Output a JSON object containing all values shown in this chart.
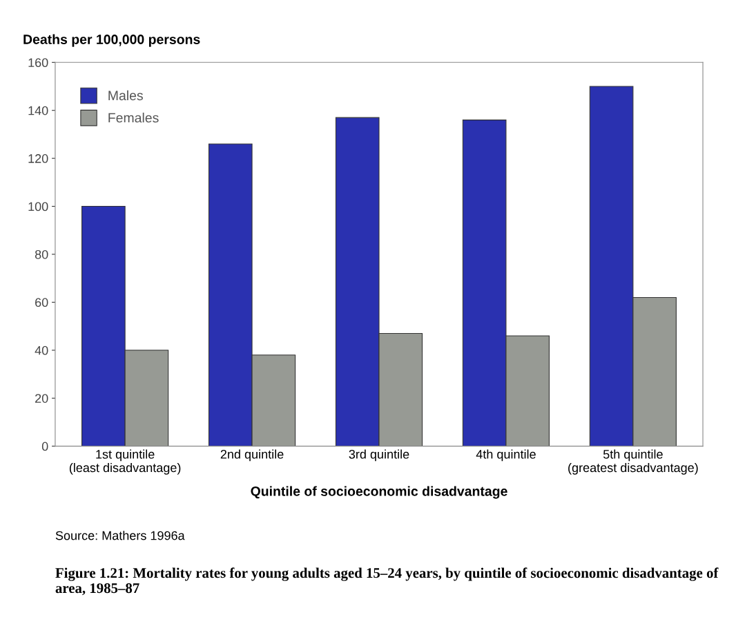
{
  "chart_data": {
    "type": "bar",
    "title": "Figure 1.21: Mortality rates for young adults aged 15–24 years, by quintile of socioeconomic disadvantage of area, 1985–87",
    "ylabel": "Deaths per 100,000 persons",
    "xlabel": "Quintile of socioeconomic disadvantage",
    "categories": [
      "1st quintile\n(least disadvantage)",
      "2nd quintile",
      "3rd quintile",
      "4th quintile",
      "5th quintile\n(greatest disadvantage)"
    ],
    "series": [
      {
        "name": "Males",
        "color": "#2a31b0",
        "values": [
          100,
          126,
          137,
          136,
          150
        ]
      },
      {
        "name": "Females",
        "color": "#979a94",
        "values": [
          40,
          38,
          47,
          46,
          62
        ]
      }
    ],
    "ylim": [
      0,
      160
    ],
    "yticks": [
      0,
      20,
      40,
      60,
      80,
      100,
      120,
      140,
      160
    ],
    "grid": false,
    "legend": "top left",
    "annotations": [
      "Source: Mathers 1996a"
    ]
  }
}
